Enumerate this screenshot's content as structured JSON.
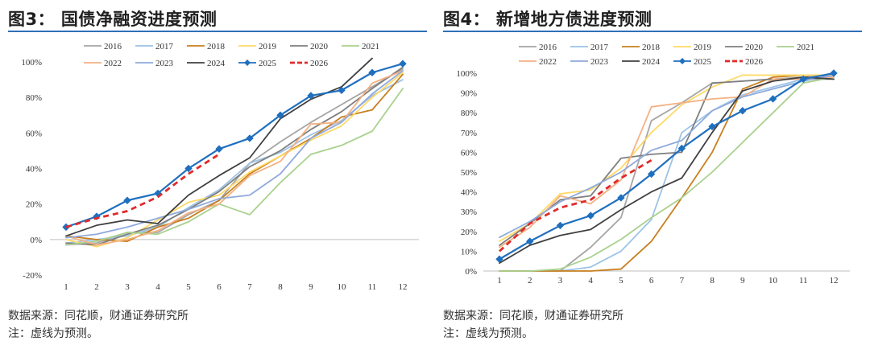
{
  "notes": {
    "source": "数据来源：同花顺，财通证券研究所",
    "dashed": "注：虚线为预测。"
  },
  "colors": {
    "2016": "#a6a6a6",
    "2017": "#9dc3e6",
    "2018": "#c87f1e",
    "2019": "#ffd966",
    "2020": "#7f7f7f",
    "2021": "#a9d18e",
    "2022": "#f4b183",
    "2023": "#8faadc",
    "2024": "#404040",
    "2025": "#1f6fbf",
    "2026": "#e02b2b"
  },
  "chart_data": [
    {
      "type": "line",
      "title": "图3：  国债净融资进度预测",
      "categories": [
        "1",
        "2",
        "3",
        "4",
        "5",
        "6",
        "7",
        "8",
        "9",
        "10",
        "11",
        "12"
      ],
      "ylim": [
        -20,
        100
      ],
      "yticks": [
        "-20%",
        "0%",
        "20%",
        "40%",
        "60%",
        "80%",
        "100%"
      ],
      "ytick_values": [
        -20,
        0,
        20,
        40,
        60,
        80,
        100
      ],
      "legend_rows": [
        [
          "2016",
          "2017",
          "2018",
          "2019",
          "2020",
          "2021"
        ],
        [
          "2022",
          "2023",
          "2024",
          "2025",
          "2026"
        ]
      ],
      "series": [
        {
          "name": "2016",
          "values": [
            -3,
            -2,
            4,
            4,
            14,
            22,
            43,
            55,
            66,
            76,
            86,
            96
          ]
        },
        {
          "name": "2017",
          "values": [
            -2,
            0,
            2,
            7,
            18,
            28,
            43,
            49,
            59,
            67,
            81,
            90
          ]
        },
        {
          "name": "2018",
          "values": [
            2,
            0,
            -1,
            7,
            12,
            22,
            37,
            47,
            57,
            69,
            73,
            93
          ]
        },
        {
          "name": "2019",
          "values": [
            0,
            -4,
            1,
            11,
            21,
            25,
            38,
            47,
            56,
            64,
            80,
            94
          ]
        },
        {
          "name": "2020",
          "values": [
            -2,
            -3,
            3,
            8,
            17,
            27,
            41,
            50,
            62,
            72,
            85,
            97
          ]
        },
        {
          "name": "2021",
          "values": [
            -3,
            -1,
            4,
            3,
            10,
            20,
            14,
            32,
            48,
            53,
            61,
            85
          ]
        },
        {
          "name": "2022",
          "values": [
            2,
            -3,
            0,
            5,
            15,
            20,
            36,
            44,
            65,
            66,
            88,
            95
          ]
        },
        {
          "name": "2023",
          "values": [
            1,
            3,
            7,
            12,
            17,
            23,
            25,
            37,
            57,
            66,
            82,
            95
          ]
        },
        {
          "name": "2024",
          "values": [
            2,
            8,
            11,
            9,
            25,
            36,
            46,
            68,
            79,
            86,
            102,
            null
          ]
        },
        {
          "name": "2025",
          "values": [
            7,
            13,
            22,
            26,
            40,
            51,
            57,
            70,
            81,
            84,
            94,
            99
          ]
        },
        {
          "name": "2026",
          "dashed": true,
          "values": [
            7,
            12,
            16,
            24,
            37,
            48,
            null,
            null,
            null,
            null,
            null,
            null
          ]
        }
      ]
    },
    {
      "type": "line",
      "title": "图4：  新增地方债进度预测",
      "categories": [
        "1",
        "2",
        "3",
        "4",
        "5",
        "6",
        "7",
        "8",
        "9",
        "10",
        "11",
        "12"
      ],
      "ylim": [
        0,
        100
      ],
      "yticks": [
        "0%",
        "10%",
        "20%",
        "30%",
        "40%",
        "50%",
        "60%",
        "70%",
        "80%",
        "90%",
        "100%"
      ],
      "ytick_values": [
        0,
        10,
        20,
        30,
        40,
        50,
        60,
        70,
        80,
        90,
        100
      ],
      "legend_rows": [
        [
          "2016",
          "2017",
          "2018",
          "2019",
          "2020",
          "2021"
        ],
        [
          "2022",
          "2023",
          "2024",
          "2025",
          "2026"
        ]
      ],
      "series": [
        {
          "name": "2016",
          "values": [
            0,
            0,
            0,
            12,
            27,
            76,
            85,
            95,
            96,
            97,
            98,
            99
          ]
        },
        {
          "name": "2017",
          "values": [
            0,
            0,
            0,
            2,
            10,
            26,
            70,
            81,
            89,
            93,
            97,
            98
          ]
        },
        {
          "name": "2018",
          "values": [
            0,
            0,
            0,
            0,
            1,
            15,
            37,
            60,
            92,
            98,
            99,
            99
          ]
        },
        {
          "name": "2019",
          "values": [
            15,
            24,
            39,
            41,
            52,
            70,
            84,
            93,
            99,
            99,
            99,
            99
          ]
        },
        {
          "name": "2020",
          "values": [
            13,
            24,
            36,
            38,
            57,
            59,
            60,
            95,
            96,
            97,
            97,
            97
          ]
        },
        {
          "name": "2021",
          "values": [
            0,
            0,
            1,
            7,
            16,
            27,
            37,
            50,
            65,
            80,
            95,
            98
          ]
        },
        {
          "name": "2022",
          "values": [
            12,
            22,
            38,
            34,
            46,
            83,
            85,
            87,
            88,
            97,
            97,
            98
          ]
        },
        {
          "name": "2023",
          "values": [
            17,
            25,
            35,
            42,
            50,
            61,
            66,
            81,
            88,
            92,
            96,
            99
          ]
        },
        {
          "name": "2024",
          "values": [
            4,
            13,
            18,
            21,
            31,
            40,
            47,
            70,
            91,
            96,
            98,
            97
          ]
        },
        {
          "name": "2025",
          "values": [
            6,
            15,
            23,
            28,
            37,
            49,
            62,
            73,
            81,
            87,
            97,
            100
          ]
        },
        {
          "name": "2026",
          "dashed": true,
          "values": [
            10,
            24,
            32,
            36,
            47,
            56,
            null,
            null,
            null,
            null,
            null,
            null
          ]
        }
      ]
    }
  ]
}
